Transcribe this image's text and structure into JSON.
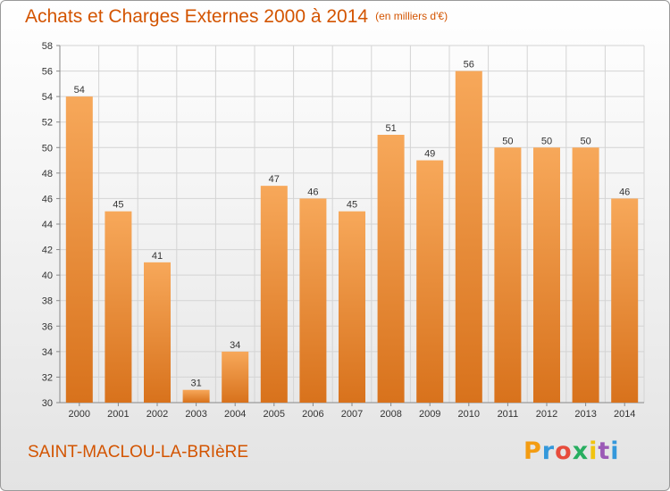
{
  "title": "Achats et Charges Externes 2000 à 2014",
  "subtitle": "(en milliers d'€)",
  "commune": "SAINT-MACLOU-LA-BRIèRE",
  "logo": {
    "letters": [
      "P",
      "r",
      "o",
      "x",
      "i",
      "t",
      "i"
    ],
    "colors": [
      "#f39c12",
      "#3498db",
      "#e74c3c",
      "#27ae60",
      "#f1c40f",
      "#9b59b6",
      "#3498db"
    ]
  },
  "colors": {
    "bar_top": "#f7a85a",
    "bar_bottom": "#d8721c",
    "title": "#d35400"
  },
  "chart_data": {
    "type": "bar",
    "title": "Achats et Charges Externes 2000 à 2014",
    "subtitle": "(en milliers d'€)",
    "categories": [
      "2000",
      "2001",
      "2002",
      "2003",
      "2004",
      "2005",
      "2006",
      "2007",
      "2008",
      "2009",
      "2010",
      "2011",
      "2012",
      "2013",
      "2014"
    ],
    "values": [
      54,
      45,
      41,
      31,
      34,
      47,
      46,
      45,
      51,
      49,
      56,
      50,
      50,
      50,
      46
    ],
    "ylim": [
      30,
      58
    ],
    "yticks": [
      30,
      32,
      34,
      36,
      38,
      40,
      42,
      44,
      46,
      48,
      50,
      52,
      54,
      56,
      58
    ],
    "grid": true,
    "data_labels": true
  }
}
